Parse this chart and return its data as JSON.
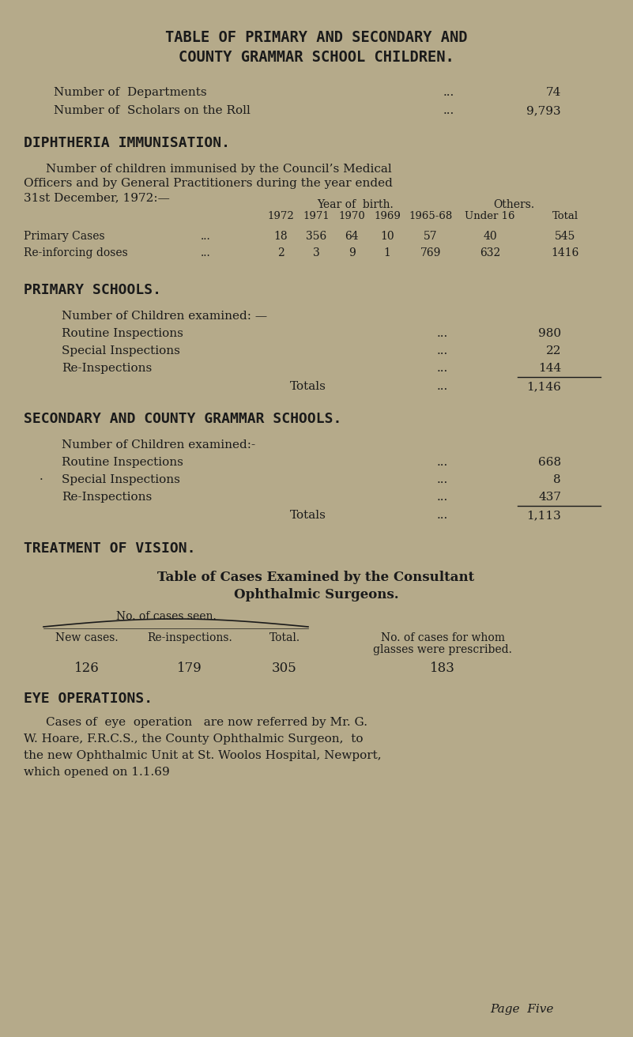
{
  "bg_color": "#b5aa8a",
  "text_color": "#1a1a1a",
  "title1": "TABLE OF PRIMARY AND SECONDARY AND",
  "title2": "COUNTY GRAMMAR SCHOOL CHILDREN.",
  "dept_label": "Number of  Departments",
  "dept_value": "74",
  "scholars_label": "Number of  Scholars on the Roll",
  "scholars_value": "9,793",
  "section1_title": "DIPHTHERIA IMMUNISATION.",
  "section1_para1": "Number of children immunised by the Council’s Medical",
  "section1_para2": "Officers and by General Practitioners during the year ended",
  "section1_para3": "31st December, 1972:—",
  "col_header1": "Year of  birth.",
  "col_header2": "Others.",
  "col_sub1": "1972",
  "col_sub2": "1971",
  "col_sub3": "1970",
  "col_sub4": "1969",
  "col_sub5": "1965-68",
  "col_sub6": "Under 16",
  "col_sub7": "Total",
  "row1_label": "Primary Cases",
  "row1_dots": "...",
  "row1_v1": "18",
  "row1_v2": "356",
  "row1_v3": "64",
  "row1_v4": "10",
  "row1_v5": "57",
  "row1_v6": "40",
  "row1_v7": "545",
  "row2_label": "Re-inforcing doses",
  "row2_dots": "...",
  "row2_v1": "2",
  "row2_v2": "3",
  "row2_v3": "9",
  "row2_v4": "1",
  "row2_v5": "769",
  "row2_v6": "632",
  "row2_v7": "1416",
  "section2_title": "PRIMARY SCHOOLS.",
  "section2_sub": "Number of Children examined: —",
  "prim_row1_label": "Routine Inspections",
  "prim_row1_dots": "...",
  "prim_row1_val": "980",
  "prim_row2_label": "Special Inspections",
  "prim_row2_dots": "...",
  "prim_row2_val": "22",
  "prim_row3_label": "Re-Inspections",
  "prim_row3_dots": "...",
  "prim_row3_val": "144",
  "prim_total_label": "Totals",
  "prim_total_dots": "...",
  "prim_total_val": "1,146",
  "section3_title": "SECONDARY AND COUNTY GRAMMAR SCHOOLS.",
  "section3_sub": "Number of Children examined:-",
  "sec_row1_label": "Routine Inspections",
  "sec_row1_dots": "...",
  "sec_row1_val": "668",
  "sec_row2_label": "Special Inspections",
  "sec_row2_dots": "...",
  "sec_row2_val": "8",
  "sec_row3_label": "Re-Inspections",
  "sec_row3_dots": "...",
  "sec_row3_val": "437",
  "sec_total_label": "Totals",
  "sec_total_dots": "...",
  "sec_total_val": "1,113",
  "section4_title": "TREATMENT OF VISION.",
  "section4_sub1": "Table of Cases Examined by the Consultant",
  "section4_sub2": "Ophthalmic Surgeons.",
  "vision_header": "No. of cases seen.",
  "vision_col1": "New cases.",
  "vision_col2": "Re-inspections.",
  "vision_col3": "Total.",
  "vision_col4": "No. of cases for whom",
  "vision_col4b": "glasses were prescribed.",
  "vision_v1": "126",
  "vision_v2": "179",
  "vision_v3": "305",
  "vision_v4": "183",
  "section5_title": "EYE OPERATIONS.",
  "section5_para1": "Cases of  eye  operation   are now referred by Mr. G.",
  "section5_para2": "W. Hoare, F.R.C.S., the County Ophthalmic Surgeon,  to",
  "section5_para3": "the new Ophthalmic Unit at St. Woolos Hospital, Newport,",
  "section5_para4": "which opened on 1.1.69",
  "page_label": "Page  Five"
}
